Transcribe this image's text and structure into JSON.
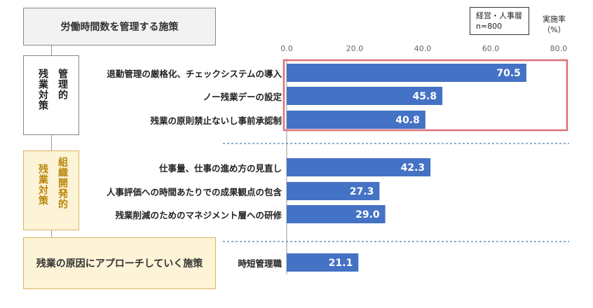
{
  "header": {
    "title": "労働時間数を管理する施策"
  },
  "meta": {
    "respondents": "経営・人事層",
    "n": "n=800"
  },
  "unit": {
    "line1": "実施率",
    "line2": "（%）"
  },
  "groups": {
    "management": {
      "label_outer": "残業対策",
      "label_inner": "管理的"
    },
    "organizational": {
      "label_outer": "残業対策",
      "label_inner": "組織開発的"
    },
    "root_cause": {
      "label": "残業の原因にアプローチしていく施策"
    }
  },
  "colors": {
    "bar": "#4472c4",
    "highlight": "#d9707a",
    "divider": "#4a7ab0"
  },
  "chart_data": {
    "type": "bar",
    "orientation": "horizontal",
    "categories": [
      "退勤管理の厳格化、チェックシステムの導入",
      "ノー残業デーの設定",
      "残業の原則禁止ないし事前承認制",
      "仕事量、仕事の進め方の見直し",
      "人事評価への時間あたりでの成果観点の包含",
      "残業削減のためのマネジメント層への研修",
      "時短管理職"
    ],
    "values": [
      70.5,
      45.8,
      40.8,
      42.3,
      27.3,
      29.0,
      21.1
    ],
    "value_labels": [
      "70.5",
      "45.8",
      "40.8",
      "42.3",
      "27.3",
      "29.0",
      "21.1"
    ],
    "xlim": [
      0,
      80
    ],
    "ticks": [
      "0.0",
      "20.0",
      "40.0",
      "60.0",
      "80.0"
    ],
    "highlighted": [
      0,
      1,
      2
    ]
  }
}
